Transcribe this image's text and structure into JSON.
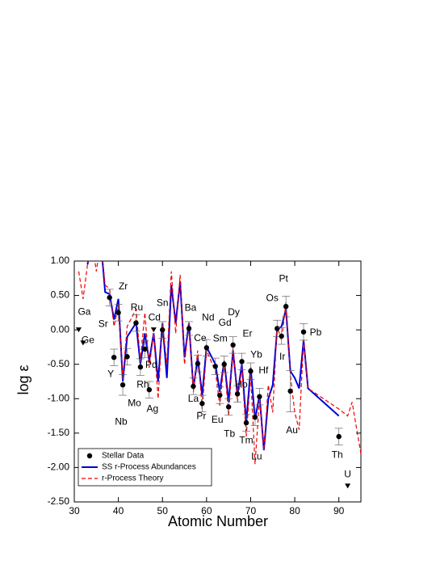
{
  "chart_data": {
    "type": "scatter",
    "xlabel": "Atomic Number",
    "ylabel": "log ε",
    "xlim": [
      30,
      95
    ],
    "ylim": [
      -2.5,
      1.0
    ],
    "xticks": [
      30,
      40,
      50,
      60,
      70,
      80,
      90
    ],
    "yticks": [
      {
        "value": -2.5,
        "label": "-2.50"
      },
      {
        "value": -2.0,
        "label": "-2.00"
      },
      {
        "value": -1.5,
        "label": "-1.50"
      },
      {
        "value": -1.0,
        "label": "-1.00"
      },
      {
        "value": -0.5,
        "label": "-0.50"
      },
      {
        "value": 0.0,
        "label": "0.00"
      },
      {
        "value": 0.5,
        "label": "0.50"
      },
      {
        "value": 1.0,
        "label": "1.00"
      }
    ],
    "legend_position": "lower left",
    "series": [
      {
        "name": "Stellar Data",
        "type": "scatter",
        "color": "#000000",
        "labels": [
          "Ga",
          "Ge",
          "Sr",
          "Y",
          "Zr",
          "Nb",
          "Mo",
          "Ru",
          "Rh",
          "Pd",
          "Ag",
          "Cd",
          "Sn",
          "Ba",
          "La",
          "Ce",
          "Pr",
          "Nd",
          "Sm",
          "Eu",
          "Gd",
          "Tb",
          "Dy",
          "Ho",
          "Er",
          "Tm",
          "Yb",
          "Lu",
          "Hf",
          "Os",
          "Ir",
          "Pt",
          "Au",
          "Pb",
          "Th",
          "U"
        ],
        "x": [
          31,
          32,
          38,
          39,
          40,
          41,
          42,
          44,
          45,
          46,
          47,
          48,
          50,
          56,
          57,
          58,
          59,
          60,
          62,
          63,
          64,
          65,
          66,
          67,
          68,
          69,
          70,
          71,
          72,
          76,
          77,
          78,
          79,
          82,
          90,
          92
        ],
        "values": [
          0.0,
          -0.19,
          0.47,
          -0.4,
          0.25,
          -0.8,
          -0.39,
          0.1,
          -0.54,
          -0.28,
          -0.87,
          0.0,
          0.0,
          0.02,
          -0.82,
          -0.49,
          -1.07,
          -0.26,
          -0.53,
          -0.95,
          -0.5,
          -1.12,
          -0.22,
          -0.93,
          -0.46,
          -1.35,
          -0.6,
          -1.27,
          -0.97,
          0.02,
          -0.09,
          0.34,
          -0.89,
          -0.03,
          -1.55,
          -2.27
        ],
        "errors": [
          null,
          null,
          0.12,
          0.12,
          0.12,
          0.15,
          0.12,
          0.12,
          0.12,
          0.12,
          0.12,
          null,
          0.12,
          0.1,
          0.12,
          0.12,
          0.12,
          0.12,
          0.12,
          0.12,
          0.12,
          0.12,
          0.12,
          0.12,
          0.12,
          0.12,
          0.12,
          0.12,
          0.12,
          0.12,
          0.12,
          0.15,
          0.3,
          0.12,
          0.12,
          null
        ],
        "upper_limits": [
          true,
          true,
          false,
          false,
          false,
          false,
          false,
          false,
          false,
          false,
          false,
          true,
          false,
          false,
          false,
          false,
          false,
          false,
          false,
          false,
          false,
          false,
          false,
          false,
          false,
          false,
          false,
          false,
          false,
          false,
          false,
          false,
          false,
          false,
          false,
          true
        ]
      },
      {
        "name": "SS r-Process Abundances",
        "type": "line",
        "color": "#0000dd",
        "dash": false,
        "x": [
          33,
          34,
          35,
          36,
          37,
          38,
          39,
          40,
          41,
          42,
          44,
          45,
          46,
          47,
          48,
          49,
          50,
          51,
          52,
          53,
          54,
          55,
          56,
          57,
          58,
          59,
          60,
          62,
          63,
          64,
          65,
          66,
          67,
          68,
          69,
          70,
          71,
          72,
          73,
          74,
          75,
          76,
          77,
          78,
          79,
          80,
          81,
          82,
          83,
          90
        ],
        "values": [
          0.95,
          1.3,
          1.0,
          1.3,
          0.55,
          0.52,
          0.15,
          0.45,
          -0.75,
          -0.1,
          0.1,
          -0.5,
          -0.05,
          -0.45,
          -0.05,
          -0.75,
          0.1,
          -0.7,
          0.65,
          0.1,
          0.7,
          -0.4,
          0.1,
          -0.85,
          -0.4,
          -0.95,
          -0.25,
          -0.5,
          -0.9,
          -0.45,
          -1.05,
          -0.3,
          -0.95,
          -0.5,
          -1.35,
          -0.55,
          -1.3,
          -0.95,
          -1.75,
          -1.0,
          -0.8,
          0.0,
          0.05,
          0.3,
          -0.6,
          -0.7,
          -0.85,
          -0.15,
          -0.85,
          -1.25
        ]
      },
      {
        "name": "r-Process Theory",
        "type": "line",
        "color": "#ee0000",
        "dash": true,
        "x": [
          31,
          32,
          33,
          34,
          35,
          36,
          37,
          38,
          39,
          40,
          41,
          42,
          44,
          45,
          46,
          47,
          48,
          49,
          50,
          51,
          52,
          53,
          54,
          55,
          56,
          57,
          58,
          59,
          60,
          62,
          63,
          64,
          65,
          66,
          67,
          68,
          69,
          70,
          71,
          72,
          73,
          74,
          75,
          76,
          77,
          78,
          79,
          80,
          81,
          82,
          83,
          90,
          92,
          93,
          95
        ],
        "values": [
          0.85,
          0.45,
          0.95,
          1.3,
          0.85,
          1.3,
          0.65,
          0.6,
          0.05,
          0.35,
          -0.7,
          0.05,
          0.3,
          -0.45,
          0.25,
          -0.55,
          -0.05,
          -1.0,
          0.1,
          -0.5,
          0.85,
          -0.05,
          0.8,
          -0.5,
          0.1,
          -0.9,
          -0.3,
          -1.15,
          -0.3,
          -0.6,
          -1.1,
          -0.45,
          -1.25,
          -0.25,
          -1.05,
          -0.55,
          -1.55,
          -0.65,
          -1.95,
          -1.0,
          -1.75,
          -0.8,
          -1.2,
          0.05,
          -0.15,
          0.4,
          -0.65,
          -1.2,
          -1.45,
          -0.15,
          -0.85,
          -1.15,
          -1.25,
          -1.05,
          -1.8
        ]
      }
    ]
  }
}
